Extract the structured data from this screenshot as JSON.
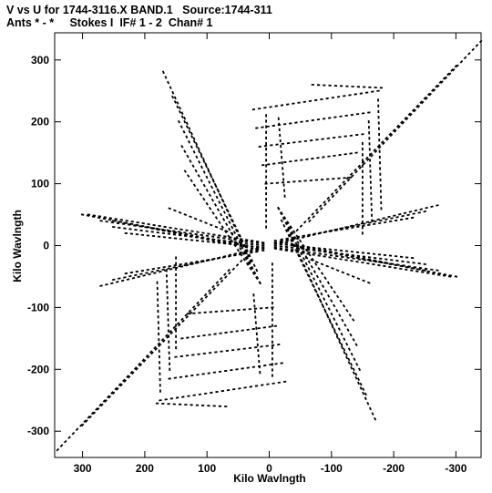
{
  "title_line1": "V vs U for 1744-3116.X BAND.1   Source:1744-311",
  "title_line2": "Ants * - *     Stokes I  IF# 1 - 2  Chan# 1",
  "chart_data": {
    "type": "scatter",
    "title": "V vs U for 1744-3116.X BAND.1   Source:1744-311",
    "subtitle": "Ants * - *     Stokes I  IF# 1 - 2  Chan# 1",
    "xlabel": "Kilo Wavlngth",
    "ylabel": "Kilo Wavlngth",
    "xlim": [
      360,
      -360
    ],
    "ylim": [
      -340,
      340
    ],
    "x_ticks": [
      300,
      200,
      100,
      0,
      -100,
      -200,
      -300
    ],
    "x_tick_labels": [
      "300",
      "200",
      "100",
      "0",
      "-100",
      "-200",
      "-300"
    ],
    "y_ticks": [
      300,
      200,
      100,
      0,
      -100,
      -200,
      -300
    ],
    "y_tick_labels": [
      "300",
      "200",
      "100",
      "0",
      "-100",
      "-200",
      "-300"
    ],
    "grid": false,
    "marker_color": "#000000",
    "point_symmetric": true,
    "series": [
      {
        "tracks": [
          [
            [
              340,
              -330
            ],
            [
              65,
              -40
            ]
          ],
          [
            [
              300,
              -290
            ],
            [
              45,
              -25
            ]
          ],
          [
            [
              -340,
              330
            ],
            [
              -65,
              40
            ]
          ],
          [
            [
              -300,
              290
            ],
            [
              -45,
              25
            ]
          ],
          [
            [
              170,
              280
            ],
            [
              30,
              -25
            ]
          ],
          [
            [
              155,
              240
            ],
            [
              20,
              -40
            ]
          ],
          [
            [
              145,
              200
            ],
            [
              15,
              -60
            ]
          ],
          [
            [
              140,
              160
            ],
            [
              15,
              -60
            ]
          ],
          [
            [
              135,
              120
            ],
            [
              15,
              -60
            ]
          ],
          [
            [
              -170,
              -280
            ],
            [
              -30,
              25
            ]
          ],
          [
            [
              -155,
              -240
            ],
            [
              -20,
              40
            ]
          ],
          [
            [
              -145,
              -200
            ],
            [
              -15,
              60
            ]
          ],
          [
            [
              -140,
              -160
            ],
            [
              -15,
              60
            ]
          ],
          [
            [
              -135,
              -120
            ],
            [
              -15,
              60
            ]
          ],
          [
            [
              25,
              220
            ],
            [
              -175,
              250
            ]
          ],
          [
            [
              20,
              190
            ],
            [
              -160,
              215
            ]
          ],
          [
            [
              15,
              160
            ],
            [
              -150,
              180
            ]
          ],
          [
            [
              10,
              130
            ],
            [
              -140,
              150
            ]
          ],
          [
            [
              5,
              100
            ],
            [
              -130,
              110
            ]
          ],
          [
            [
              -25,
              -220
            ],
            [
              175,
              -250
            ]
          ],
          [
            [
              -20,
              -190
            ],
            [
              160,
              -215
            ]
          ],
          [
            [
              -15,
              -160
            ],
            [
              150,
              -180
            ]
          ],
          [
            [
              -10,
              -130
            ],
            [
              140,
              -150
            ]
          ],
          [
            [
              -5,
              -100
            ],
            [
              130,
              -110
            ]
          ],
          [
            [
              -70,
              260
            ],
            [
              -180,
              255
            ]
          ],
          [
            [
              70,
              -260
            ],
            [
              180,
              -255
            ]
          ],
          [
            [
              -175,
              235
            ],
            [
              -180,
              60
            ]
          ],
          [
            [
              -160,
              200
            ],
            [
              -165,
              40
            ]
          ],
          [
            [
              -150,
              165
            ],
            [
              -150,
              20
            ]
          ],
          [
            [
              175,
              -235
            ],
            [
              180,
              -60
            ]
          ],
          [
            [
              160,
              -200
            ],
            [
              165,
              -40
            ]
          ],
          [
            [
              150,
              -165
            ],
            [
              150,
              -20
            ]
          ],
          [
            [
              290,
              50
            ],
            [
              10,
              5
            ]
          ],
          [
            [
              270,
              40
            ],
            [
              10,
              3
            ]
          ],
          [
            [
              250,
              30
            ],
            [
              10,
              0
            ]
          ],
          [
            [
              230,
              20
            ],
            [
              10,
              -3
            ]
          ],
          [
            [
              -290,
              -50
            ],
            [
              -10,
              -5
            ]
          ],
          [
            [
              -270,
              -40
            ],
            [
              -10,
              -3
            ]
          ],
          [
            [
              -250,
              -30
            ],
            [
              -10,
              0
            ]
          ],
          [
            [
              -230,
              -20
            ],
            [
              -10,
              3
            ]
          ],
          [
            [
              270,
              -65
            ],
            [
              20,
              -5
            ]
          ],
          [
            [
              250,
              -55
            ],
            [
              20,
              -8
            ]
          ],
          [
            [
              230,
              -45
            ],
            [
              20,
              -10
            ]
          ],
          [
            [
              -270,
              65
            ],
            [
              -20,
              5
            ]
          ],
          [
            [
              -250,
              55
            ],
            [
              -20,
              8
            ]
          ],
          [
            [
              -230,
              45
            ],
            [
              -20,
              10
            ]
          ],
          [
            [
              -300,
              -50
            ],
            [
              -10,
              5
            ]
          ],
          [
            [
              -250,
              -40
            ],
            [
              -10,
              8
            ]
          ],
          [
            [
              300,
              50
            ],
            [
              10,
              -5
            ]
          ],
          [
            [
              250,
              40
            ],
            [
              10,
              -8
            ]
          ],
          [
            [
              5,
              210
            ],
            [
              5,
              30
            ]
          ],
          [
            [
              -5,
              -210
            ],
            [
              -5,
              -30
            ]
          ],
          [
            [
              -15,
              205
            ],
            [
              -25,
              80
            ]
          ],
          [
            [
              15,
              -205
            ],
            [
              25,
              -80
            ]
          ],
          [
            [
              60,
              20
            ],
            [
              160,
              60
            ]
          ],
          [
            [
              -60,
              -20
            ],
            [
              -160,
              -60
            ]
          ]
        ]
      }
    ]
  }
}
